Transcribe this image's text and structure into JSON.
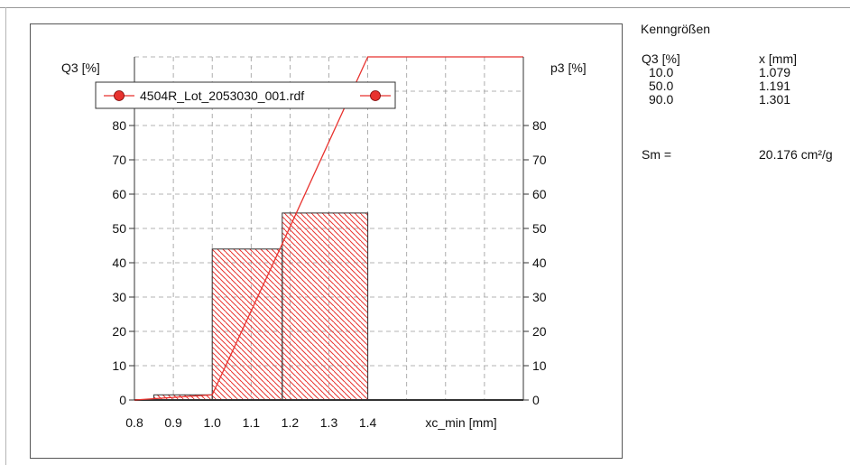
{
  "chart_data": {
    "type": "bar",
    "title": "",
    "xlabel": "xc_min [mm]",
    "ylabel_left": "Q3 [%]",
    "ylabel_right": "p3 [%]",
    "xlim": [
      0.8,
      1.8
    ],
    "ylim": [
      0,
      100
    ],
    "x_ticks": [
      "0.8",
      "0.9",
      "1.0",
      "1.1",
      "1.2",
      "1.3",
      "1.4"
    ],
    "y_ticks": [
      "0",
      "10",
      "20",
      "30",
      "40",
      "50",
      "60",
      "70",
      "80"
    ],
    "grid": true,
    "legend": {
      "placement": "top-left",
      "entries": [
        "4504R_Lot_2053030_001.rdf"
      ]
    },
    "colors": {
      "series": "#e8322e",
      "hatch": "#e8322e",
      "bar_edge": "#333333",
      "grid": "#9a9a9a"
    },
    "histogram": {
      "name": "p3",
      "bins": [
        {
          "x0": 0.85,
          "x1": 1.0,
          "value": 1.5
        },
        {
          "x0": 1.0,
          "x1": 1.18,
          "value": 44.0
        },
        {
          "x0": 1.18,
          "x1": 1.4,
          "value": 54.5
        }
      ],
      "baseline_extent": [
        0.8,
        1.8
      ]
    },
    "cumulative": {
      "name": "Q3",
      "x": [
        0.8,
        1.0,
        1.18,
        1.4,
        1.8
      ],
      "y": [
        0,
        1.5,
        45.5,
        100,
        100
      ]
    }
  },
  "stats": {
    "title": "Kenngrößen",
    "col_q3_header": "Q3 [%]",
    "col_x_header": "x [mm]",
    "rows": [
      {
        "q3": "10.0",
        "x": "1.079"
      },
      {
        "q3": "50.0",
        "x": "1.191"
      },
      {
        "q3": "90.0",
        "x": "1.301"
      }
    ],
    "sm_label": "Sm =",
    "sm_value": "20.176 cm²/g"
  }
}
